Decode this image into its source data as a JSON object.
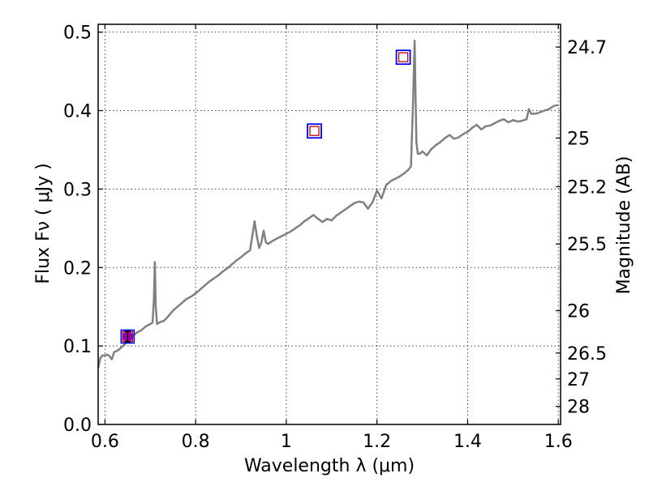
{
  "chart_data": {
    "type": "line",
    "title": "",
    "xlabel": "Wavelength  λ (μm)",
    "ylabel": "Flux  Fν  ( μJy )",
    "y2label": "Magnitude (AB)",
    "xlim": [
      0.585,
      1.605
    ],
    "ylim": [
      0.0,
      0.51
    ],
    "grid": true,
    "x_ticks": [
      0.6,
      0.8,
      1.0,
      1.2,
      1.4,
      1.6
    ],
    "x_tick_labels": [
      "0.6",
      "0.8",
      "1",
      "1.2",
      "1.4",
      "1.6"
    ],
    "y_ticks": [
      0.0,
      0.1,
      0.2,
      0.3,
      0.4,
      0.5
    ],
    "y_tick_labels": [
      "0.0",
      "0.1",
      "0.2",
      "0.3",
      "0.4",
      "0.5"
    ],
    "mag_ticks": [
      {
        "label": "24.7",
        "flux": 0.481
      },
      {
        "label": "25",
        "flux": 0.365
      },
      {
        "label": "25.2",
        "flux": 0.303
      },
      {
        "label": "25.5",
        "flux": 0.23
      },
      {
        "label": "26",
        "flux": 0.145
      },
      {
        "label": "26.5",
        "flux": 0.091
      },
      {
        "label": "27",
        "flux": 0.058
      },
      {
        "label": "28",
        "flux": 0.023
      }
    ],
    "series": [
      {
        "name": "spectrum",
        "color": "#808080",
        "x": [
          0.585,
          0.59,
          0.595,
          0.6,
          0.605,
          0.61,
          0.615,
          0.62,
          0.63,
          0.64,
          0.65,
          0.66,
          0.67,
          0.68,
          0.69,
          0.7,
          0.705,
          0.708,
          0.71,
          0.712,
          0.715,
          0.72,
          0.73,
          0.74,
          0.75,
          0.76,
          0.77,
          0.78,
          0.79,
          0.8,
          0.81,
          0.82,
          0.83,
          0.84,
          0.85,
          0.86,
          0.87,
          0.88,
          0.89,
          0.9,
          0.91,
          0.92,
          0.925,
          0.93,
          0.935,
          0.94,
          0.945,
          0.95,
          0.955,
          0.96,
          0.97,
          0.98,
          0.99,
          1.0,
          1.01,
          1.02,
          1.03,
          1.04,
          1.05,
          1.06,
          1.07,
          1.08,
          1.09,
          1.1,
          1.11,
          1.12,
          1.13,
          1.14,
          1.15,
          1.16,
          1.17,
          1.18,
          1.19,
          1.2,
          1.21,
          1.22,
          1.23,
          1.24,
          1.25,
          1.26,
          1.27,
          1.275,
          1.28,
          1.283,
          1.285,
          1.287,
          1.29,
          1.295,
          1.3,
          1.31,
          1.32,
          1.33,
          1.34,
          1.35,
          1.36,
          1.37,
          1.38,
          1.39,
          1.4,
          1.41,
          1.42,
          1.43,
          1.44,
          1.45,
          1.46,
          1.47,
          1.48,
          1.49,
          1.5,
          1.51,
          1.52,
          1.53,
          1.535,
          1.54,
          1.55,
          1.56,
          1.57,
          1.58,
          1.59,
          1.6
        ],
        "values": [
          0.072,
          0.085,
          0.088,
          0.088,
          0.089,
          0.087,
          0.083,
          0.092,
          0.095,
          0.1,
          0.106,
          0.112,
          0.117,
          0.12,
          0.125,
          0.128,
          0.13,
          0.16,
          0.207,
          0.15,
          0.128,
          0.13,
          0.132,
          0.138,
          0.145,
          0.15,
          0.155,
          0.16,
          0.163,
          0.167,
          0.172,
          0.177,
          0.182,
          0.186,
          0.19,
          0.195,
          0.199,
          0.204,
          0.209,
          0.213,
          0.218,
          0.222,
          0.24,
          0.259,
          0.24,
          0.225,
          0.232,
          0.247,
          0.232,
          0.23,
          0.234,
          0.237,
          0.24,
          0.243,
          0.246,
          0.25,
          0.254,
          0.259,
          0.263,
          0.267,
          0.262,
          0.258,
          0.262,
          0.26,
          0.266,
          0.27,
          0.274,
          0.278,
          0.282,
          0.284,
          0.283,
          0.275,
          0.283,
          0.298,
          0.288,
          0.305,
          0.31,
          0.313,
          0.316,
          0.32,
          0.325,
          0.329,
          0.42,
          0.489,
          0.42,
          0.36,
          0.345,
          0.345,
          0.348,
          0.343,
          0.351,
          0.356,
          0.36,
          0.365,
          0.369,
          0.364,
          0.366,
          0.37,
          0.373,
          0.378,
          0.382,
          0.376,
          0.38,
          0.381,
          0.384,
          0.387,
          0.389,
          0.385,
          0.388,
          0.386,
          0.387,
          0.389,
          0.402,
          0.396,
          0.396,
          0.398,
          0.4,
          0.402,
          0.406,
          0.407
        ]
      }
    ],
    "points": [
      {
        "name": "photometry-1",
        "x": 0.65,
        "y": 0.112,
        "err": 0.007,
        "marker_edge": "#0000ff",
        "inner_edge": "#cc0000",
        "fill": "#9900aa",
        "filled": true
      },
      {
        "name": "photometry-2",
        "x": 1.062,
        "y": 0.374,
        "marker_edge": "#0000ff",
        "inner_edge": "#cc0000",
        "filled": false
      },
      {
        "name": "photometry-3",
        "x": 1.258,
        "y": 0.468,
        "marker_edge": "#0000ff",
        "inner_edge": "#cc0000",
        "filled": false
      }
    ]
  }
}
